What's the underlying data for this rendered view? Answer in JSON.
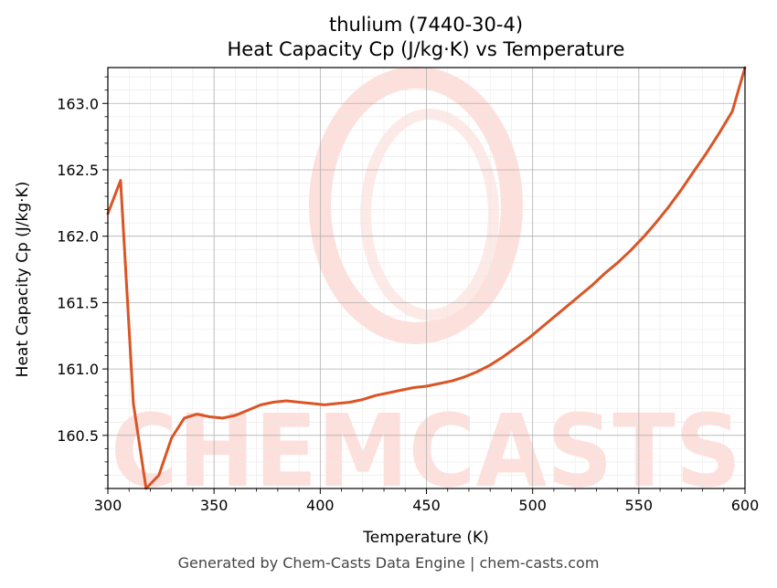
{
  "chart_data": {
    "type": "line",
    "title": "thulium (7440-30-4)",
    "subtitle": "Heat Capacity Cp (J/kg·K) vs Temperature",
    "xlabel": "Temperature (K)",
    "ylabel": "Heat Capacity Cp (J/kg·K)",
    "xlim": [
      300,
      600
    ],
    "ylim": [
      160.1,
      163.27
    ],
    "xticks": [
      300,
      350,
      400,
      450,
      500,
      550,
      600
    ],
    "yticks": [
      160.5,
      161.0,
      161.5,
      162.0,
      162.5,
      163.0
    ],
    "xtick_labels": [
      "300",
      "350",
      "400",
      "450",
      "500",
      "550",
      "600"
    ],
    "ytick_labels": [
      "160.5",
      "161.0",
      "161.5",
      "162.0",
      "162.5",
      "163.0"
    ],
    "grid": true,
    "legend": "none",
    "series": [
      {
        "color": "#d95525",
        "x": [
          300,
          306,
          312,
          318,
          324,
          330,
          336,
          342,
          348,
          354,
          360,
          366,
          372,
          378,
          384,
          390,
          396,
          402,
          408,
          414,
          420,
          426,
          432,
          438,
          444,
          450,
          456,
          462,
          468,
          474,
          480,
          486,
          492,
          498,
          504,
          510,
          516,
          522,
          528,
          534,
          540,
          546,
          552,
          558,
          564,
          570,
          576,
          582,
          588,
          594,
          600
        ],
        "y": [
          162.17,
          162.42,
          160.74,
          160.1,
          160.2,
          160.48,
          160.63,
          160.66,
          160.64,
          160.63,
          160.65,
          160.69,
          160.73,
          160.75,
          160.76,
          160.75,
          160.74,
          160.73,
          160.74,
          160.75,
          160.77,
          160.8,
          160.82,
          160.84,
          160.86,
          160.87,
          160.89,
          160.91,
          160.94,
          160.98,
          161.03,
          161.09,
          161.16,
          161.23,
          161.31,
          161.39,
          161.47,
          161.55,
          161.63,
          161.72,
          161.8,
          161.89,
          161.99,
          162.1,
          162.22,
          162.35,
          162.49,
          162.63,
          162.78,
          162.94,
          163.27
        ]
      }
    ]
  },
  "watermark": {
    "text": "CHEMCASTS",
    "color": "#fde0dc"
  },
  "footer": {
    "text": "Generated by Chem-Casts Data Engine | chem-casts.com"
  }
}
